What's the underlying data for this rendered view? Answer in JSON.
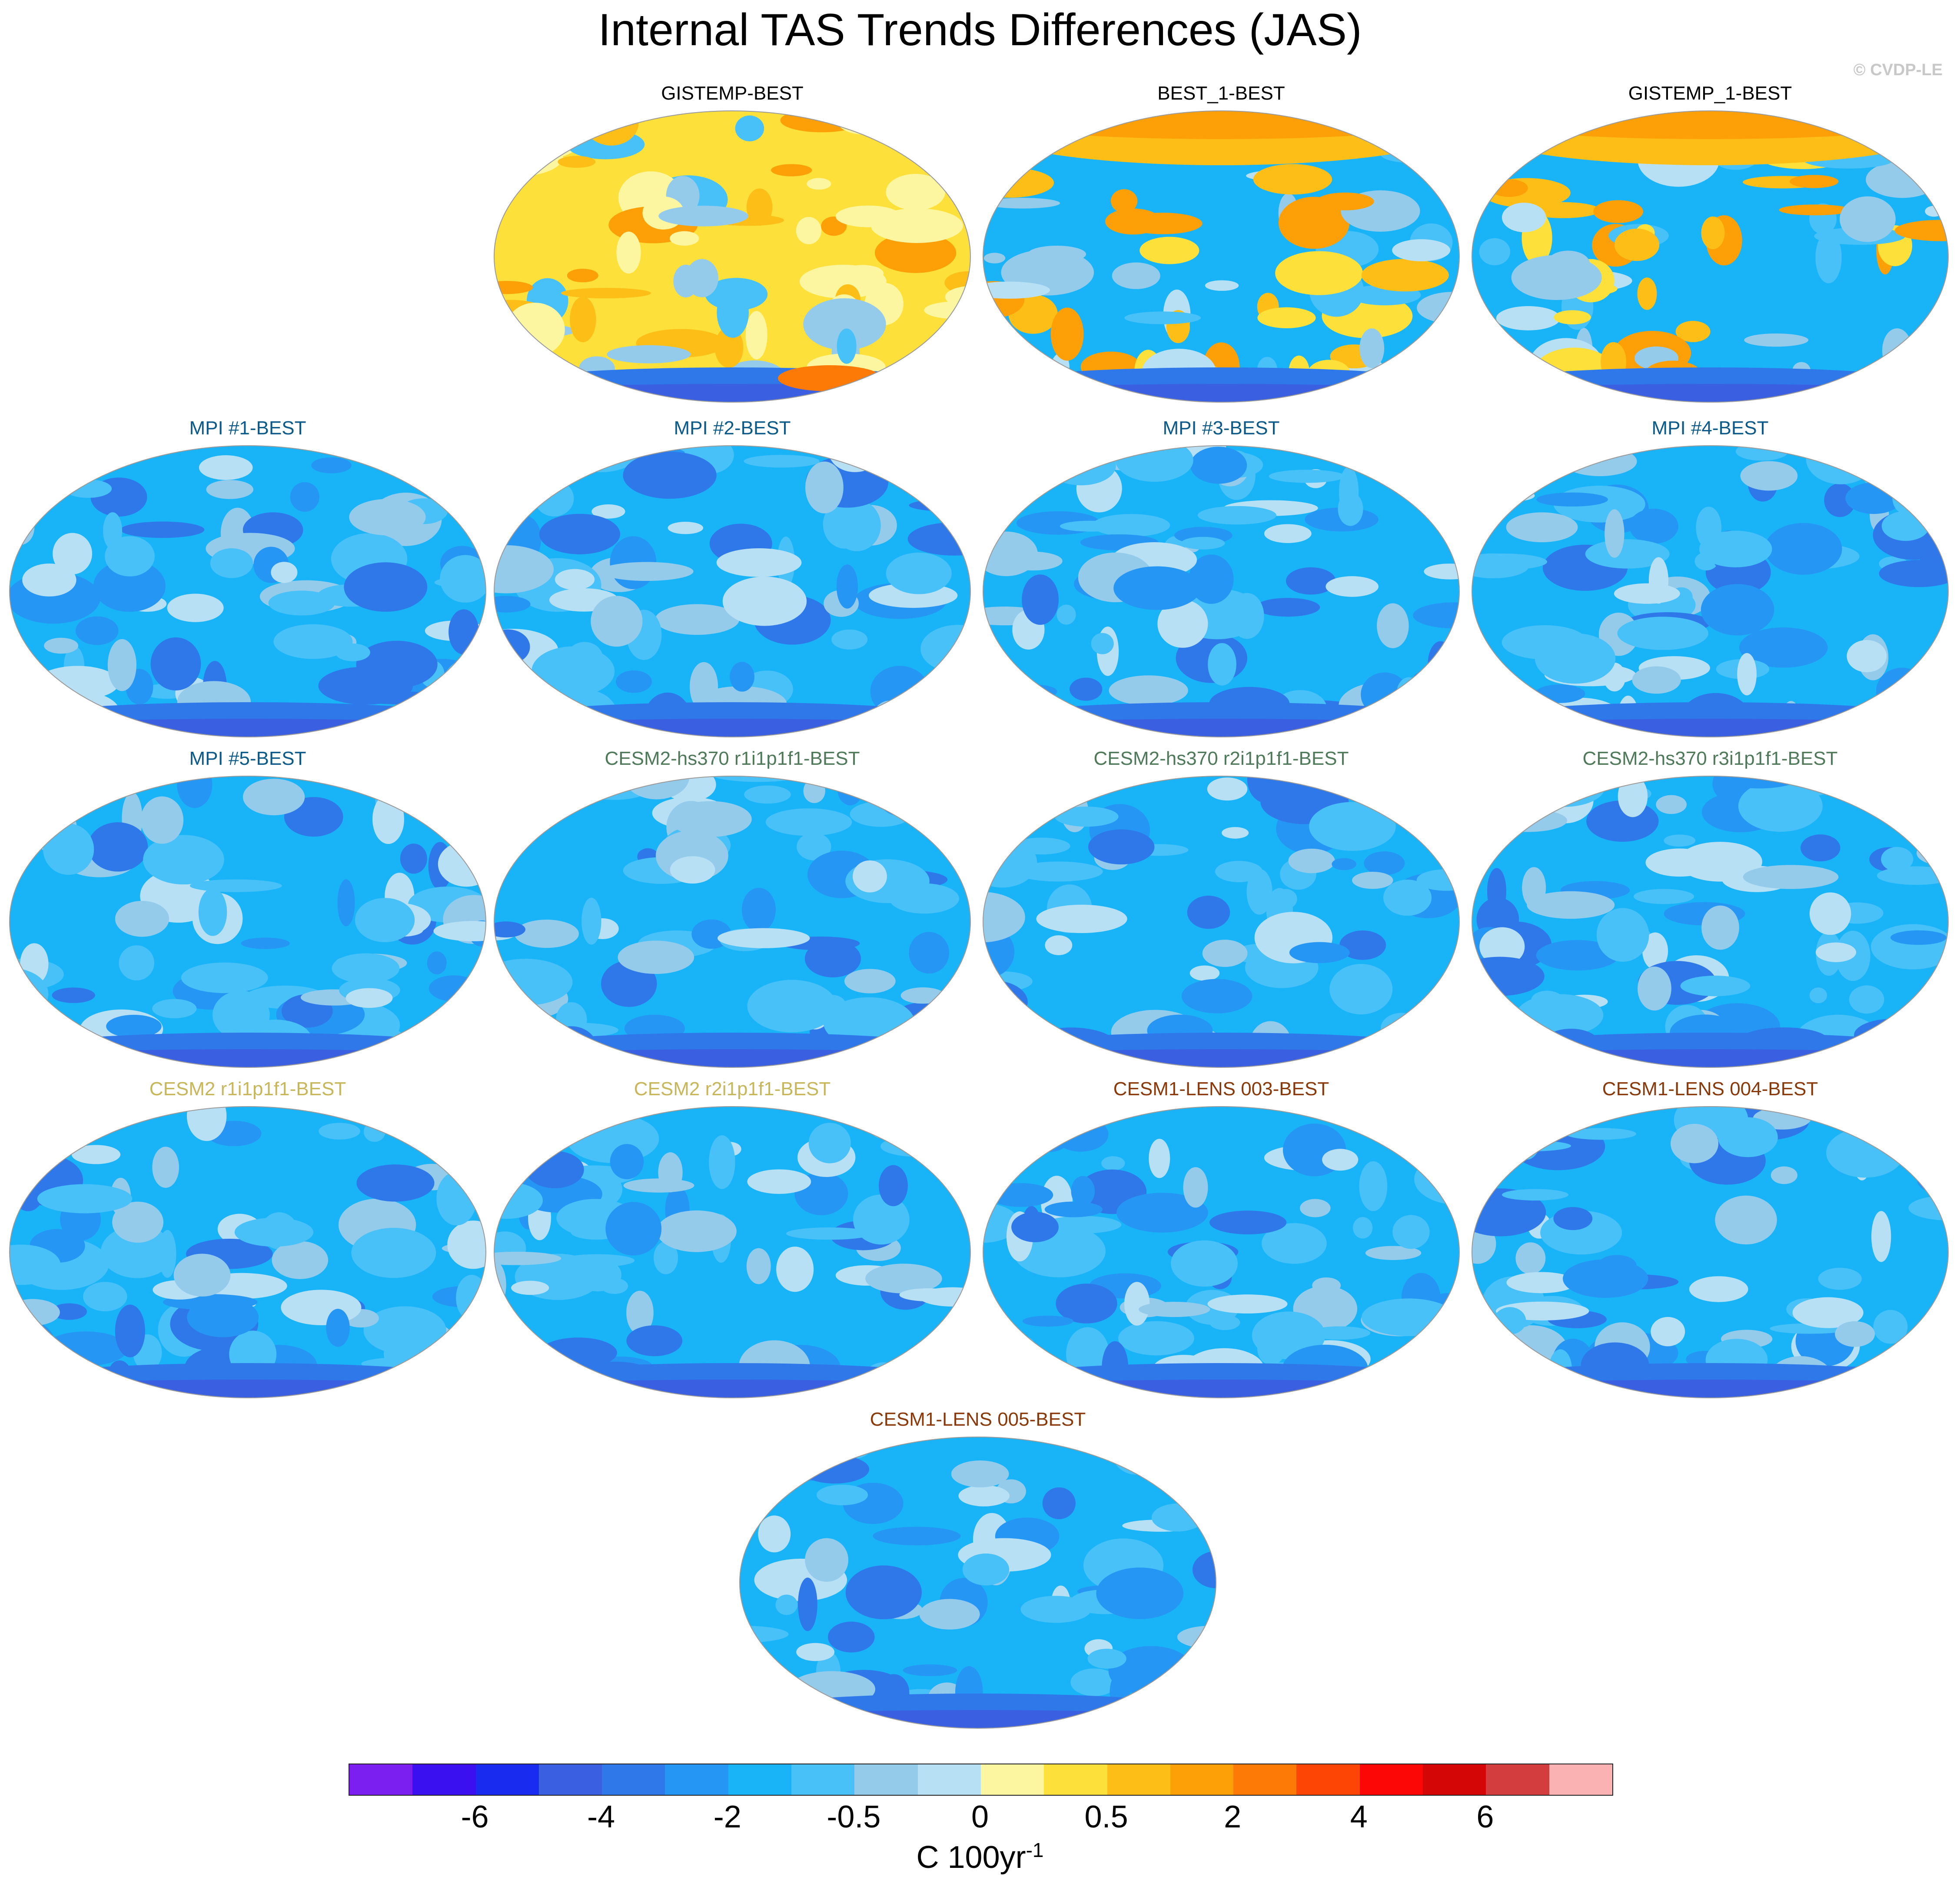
{
  "title": "Internal TAS Trends Differences (JAS)",
  "copyright": "© CVDP-LE",
  "colors": {
    "obs_title": "#000000",
    "mpi_title": "#0b5a8a",
    "cesm2hs_title": "#4f7a5a",
    "cesm2_title": "#c7b75a",
    "cesm1_title": "#8a3a0a"
  },
  "panels": [
    {
      "label": "GISTEMP-BEST",
      "group": "obs",
      "fill": "warm"
    },
    {
      "label": "BEST_1-BEST",
      "group": "obs",
      "fill": "mixed"
    },
    {
      "label": "GISTEMP_1-BEST",
      "group": "obs",
      "fill": "mixed"
    },
    {
      "label": "MPI #1-BEST",
      "group": "mpi",
      "fill": "cool"
    },
    {
      "label": "MPI #2-BEST",
      "group": "mpi",
      "fill": "cool"
    },
    {
      "label": "MPI #3-BEST",
      "group": "mpi",
      "fill": "cool"
    },
    {
      "label": "MPI #4-BEST",
      "group": "mpi",
      "fill": "cool"
    },
    {
      "label": "MPI #5-BEST",
      "group": "mpi",
      "fill": "cool"
    },
    {
      "label": "CESM2-hs370 r1i1p1f1-BEST",
      "group": "cesm2hs",
      "fill": "cool"
    },
    {
      "label": "CESM2-hs370 r2i1p1f1-BEST",
      "group": "cesm2hs",
      "fill": "cool"
    },
    {
      "label": "CESM2-hs370 r3i1p1f1-BEST",
      "group": "cesm2hs",
      "fill": "cool"
    },
    {
      "label": "CESM2 r1i1p1f1-BEST",
      "group": "cesm2",
      "fill": "cool"
    },
    {
      "label": "CESM2 r2i1p1f1-BEST",
      "group": "cesm2",
      "fill": "cool"
    },
    {
      "label": "CESM1-LENS 003-BEST",
      "group": "cesm1",
      "fill": "cool"
    },
    {
      "label": "CESM1-LENS 004-BEST",
      "group": "cesm1",
      "fill": "cool"
    },
    {
      "label": "CESM1-LENS 005-BEST",
      "group": "cesm1",
      "fill": "cool"
    }
  ],
  "colorbar": {
    "colors": [
      "#7a1ff0",
      "#3b10f0",
      "#1a2bf0",
      "#3a5fe0",
      "#2f78ea",
      "#2696f4",
      "#19b4f7",
      "#47c1f7",
      "#94cbeb",
      "#b8e0f5",
      "#fdf6a0",
      "#fde03a",
      "#fdbf17",
      "#fd9f06",
      "#fd7a06",
      "#fd4606",
      "#fd0606",
      "#d40606",
      "#d43d3d",
      "#fbb2b2"
    ],
    "tick_labels": [
      "-6",
      "-4",
      "-2",
      "-0.5",
      "0",
      "0.5",
      "2",
      "4",
      "6"
    ],
    "units": "C 100yr",
    "units_exp": "-1"
  }
}
